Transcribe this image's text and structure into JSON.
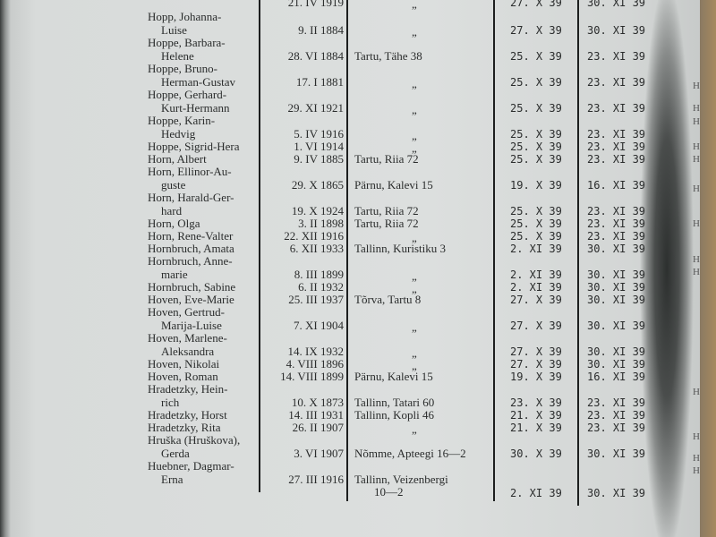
{
  "rows": [
    {
      "name": [
        ""
      ],
      "birth": "21. IV 1919",
      "address": [
        "„"
      ],
      "date1": "27. X 39",
      "date2": "30. XI 39"
    },
    {
      "name": [
        "Hopp, Johanna-",
        "Luise"
      ],
      "birth": "9. II 1884",
      "address": [
        "„"
      ],
      "date1": "27. X 39",
      "date2": "30. XI 39"
    },
    {
      "name": [
        "Hoppe, Barbara-",
        "Helene"
      ],
      "birth": "28. VI 1884",
      "address": [
        "Tartu, Tähe 38"
      ],
      "date1": "25. X 39",
      "date2": "23. XI 39"
    },
    {
      "name": [
        "Hoppe, Bruno-",
        "Herman-Gustav"
      ],
      "birth": "17. I 1881",
      "address": [
        "„"
      ],
      "date1": "25. X 39",
      "date2": "23. XI 39"
    },
    {
      "name": [
        "Hoppe, Gerhard-",
        "Kurt-Hermann"
      ],
      "birth": "29. XI 1921",
      "address": [
        "„"
      ],
      "date1": "25. X 39",
      "date2": "23. XI 39"
    },
    {
      "name": [
        "Hoppe, Karin-",
        "Hedvig"
      ],
      "birth": "5. IV 1916",
      "address": [
        "„"
      ],
      "date1": "25. X 39",
      "date2": "23. XI 39"
    },
    {
      "name": [
        "Hoppe, Sigrid-Hera"
      ],
      "birth": "1. VI 1914",
      "address": [
        "„"
      ],
      "date1": "25. X 39",
      "date2": "23. XI 39"
    },
    {
      "name": [
        "Horn, Albert"
      ],
      "birth": "9. IV 1885",
      "address": [
        "Tartu, Riia 72"
      ],
      "date1": "25. X 39",
      "date2": "23. XI 39"
    },
    {
      "name": [
        "Horn, Ellinor-Au-",
        "guste"
      ],
      "birth": "29. X 1865",
      "address": [
        "Pärnu, Kalevi 15"
      ],
      "date1": "19. X 39",
      "date2": "16. XI 39"
    },
    {
      "name": [
        "Horn, Harald-Ger-",
        "hard"
      ],
      "birth": "19. X 1924",
      "address": [
        "Tartu, Riia 72"
      ],
      "date1": "25. X 39",
      "date2": "23. XI 39"
    },
    {
      "name": [
        "Horn, Olga"
      ],
      "birth": "3. II 1898",
      "address": [
        "Tartu, Riia 72"
      ],
      "date1": "25. X 39",
      "date2": "23. XI 39"
    },
    {
      "name": [
        "Horn, Rene-Valter"
      ],
      "birth": "22. XII 1916",
      "address": [
        "„"
      ],
      "date1": "25. X 39",
      "date2": "23. XI 39"
    },
    {
      "name": [
        "Hornbruch, Amata"
      ],
      "birth": "6. XII 1933",
      "address": [
        "Tallinn, Kuristiku 3"
      ],
      "date1": "2. XI 39",
      "date2": "30. XI 39"
    },
    {
      "name": [
        "Hornbruch, Anne-",
        "marie"
      ],
      "birth": "8. III 1899",
      "address": [
        "„"
      ],
      "date1": "2. XI 39",
      "date2": "30. XI 39"
    },
    {
      "name": [
        "Hornbruch, Sabine"
      ],
      "birth": "6. II 1932",
      "address": [
        "„"
      ],
      "date1": "2. XI 39",
      "date2": "30. XI 39"
    },
    {
      "name": [
        "Hoven, Eve-Marie"
      ],
      "birth": "25. III 1937",
      "address": [
        "Tõrva, Tartu 8"
      ],
      "date1": "27. X 39",
      "date2": "30. XI 39"
    },
    {
      "name": [
        "Hoven, Gertrud-",
        "Marija-Luise"
      ],
      "birth": "7. XI 1904",
      "address": [
        "„"
      ],
      "date1": "27. X 39",
      "date2": "30. XI 39"
    },
    {
      "name": [
        "Hoven, Marlene-",
        "Aleksandra"
      ],
      "birth": "14. IX 1932",
      "address": [
        "„"
      ],
      "date1": "27. X 39",
      "date2": "30. XI 39"
    },
    {
      "name": [
        "Hoven, Nikolai"
      ],
      "birth": "4. VIII 1896",
      "address": [
        "„"
      ],
      "date1": "27. X 39",
      "date2": "30. XI 39"
    },
    {
      "name": [
        "Hoven, Roman"
      ],
      "birth": "14. VIII 1899",
      "address": [
        "Pärnu, Kalevi 15"
      ],
      "date1": "19. X 39",
      "date2": "16. XI 39"
    },
    {
      "name": [
        "Hradetzky, Hein-",
        "rich"
      ],
      "birth": "10. X 1873",
      "address": [
        "Tallinn, Tatari 60"
      ],
      "date1": "23. X 39",
      "date2": "23. XI 39"
    },
    {
      "name": [
        "Hradetzky, Horst"
      ],
      "birth": "14. III 1931",
      "address": [
        "Tallinn, Kopli 46"
      ],
      "date1": "21. X 39",
      "date2": "23. XI 39"
    },
    {
      "name": [
        "Hradetzky, Rita"
      ],
      "birth": "26. II 1907",
      "address": [
        "„"
      ],
      "date1": "21. X 39",
      "date2": "23. XI 39"
    },
    {
      "name": [
        "Hruška (Hruškova),",
        "Gerda"
      ],
      "birth": "3. VI 1907",
      "address": [
        "Nõmme, Apteegi 16—2"
      ],
      "date1": "30. X 39",
      "date2": "30. XI 39"
    },
    {
      "name": [
        "Huebner, Dagmar-",
        "Erna"
      ],
      "birth": "27. III 1916",
      "address": [
        "Tallinn, Veizenbergi",
        "10—2"
      ],
      "date1": "2. XI 39",
      "date2": "30. XI 39"
    }
  ],
  "margin_marks": [
    "H",
    "H",
    "H",
    "H",
    "H",
    "H",
    "H",
    "H",
    "H",
    "H",
    "H",
    "H",
    "H"
  ]
}
